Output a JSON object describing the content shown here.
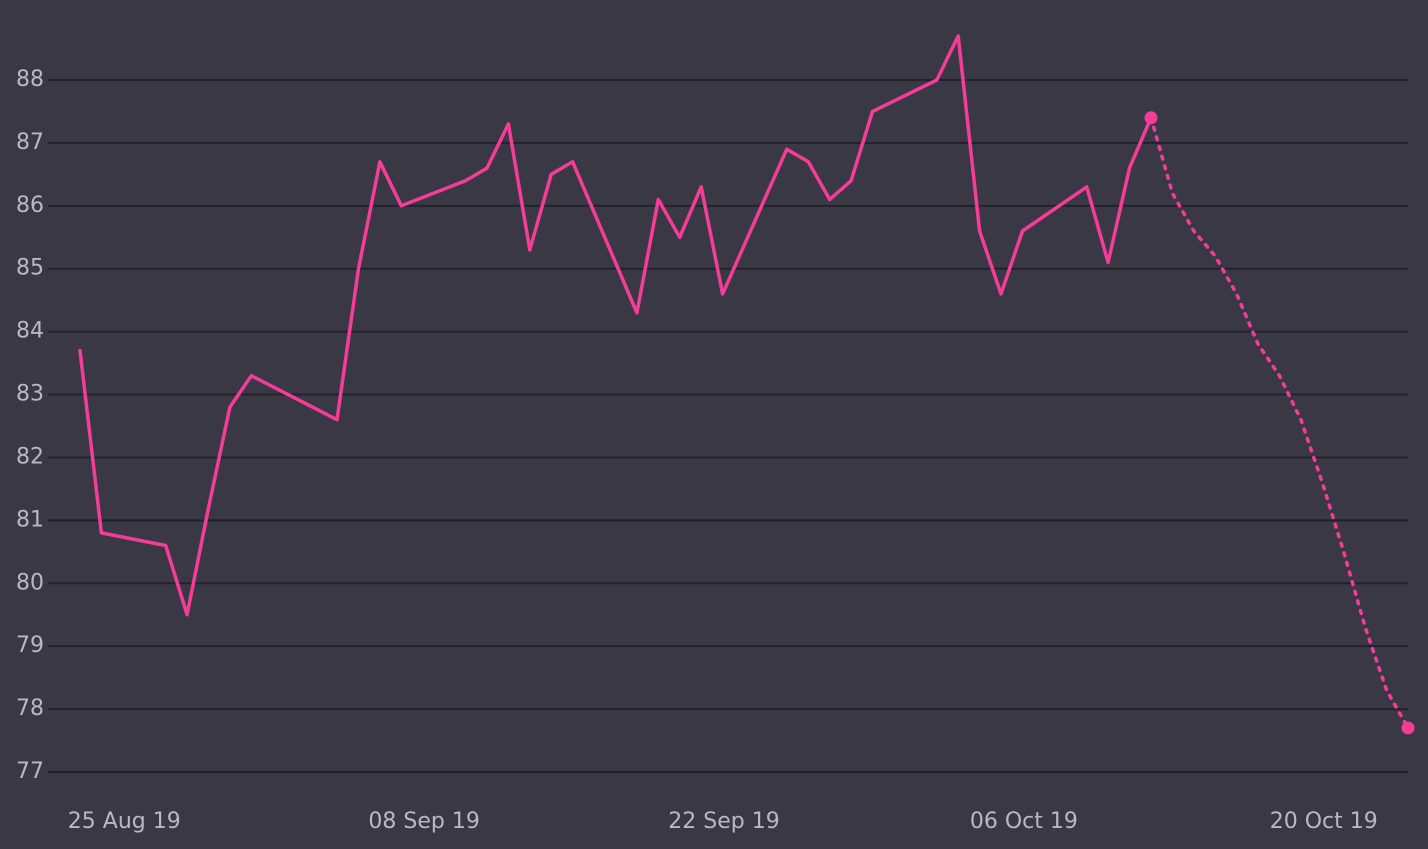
{
  "chart_data": {
    "type": "line",
    "title": "",
    "xlabel": "",
    "ylabel": "",
    "ylim": [
      77,
      88
    ],
    "y_ticks": [
      77,
      78,
      79,
      80,
      81,
      82,
      83,
      84,
      85,
      86,
      87,
      88
    ],
    "x_ticks": [
      {
        "date": "2019-08-25",
        "label": "25 Aug 19"
      },
      {
        "date": "2019-09-08",
        "label": "08 Sep 19"
      },
      {
        "date": "2019-09-22",
        "label": "22 Sep 19"
      },
      {
        "date": "2019-10-06",
        "label": "06 Oct 19"
      },
      {
        "date": "2019-10-20",
        "label": "20 Oct 19"
      }
    ],
    "xlim": [
      "2019-08-22",
      "2019-10-23"
    ],
    "grid": true,
    "colors": {
      "background": "#393844",
      "grid": "#23222b",
      "series": "#f53d97",
      "tick_label": "#b9b8c4"
    },
    "series": [
      {
        "style": "solid",
        "points": [
          {
            "x": "2019-08-22",
            "y": 83.7
          },
          {
            "x": "2019-08-23",
            "y": 80.8
          },
          {
            "x": "2019-08-26",
            "y": 80.6
          },
          {
            "x": "2019-08-27",
            "y": 79.5
          },
          {
            "x": "2019-08-28",
            "y": 81.2
          },
          {
            "x": "2019-08-29",
            "y": 82.8
          },
          {
            "x": "2019-08-30",
            "y": 83.3
          },
          {
            "x": "2019-09-03",
            "y": 82.6
          },
          {
            "x": "2019-09-04",
            "y": 85.0
          },
          {
            "x": "2019-09-05",
            "y": 86.7
          },
          {
            "x": "2019-09-06",
            "y": 86.0
          },
          {
            "x": "2019-09-09",
            "y": 86.4
          },
          {
            "x": "2019-09-10",
            "y": 86.6
          },
          {
            "x": "2019-09-11",
            "y": 87.3
          },
          {
            "x": "2019-09-12",
            "y": 85.3
          },
          {
            "x": "2019-09-13",
            "y": 86.5
          },
          {
            "x": "2019-09-14",
            "y": 86.7
          },
          {
            "x": "2019-09-17",
            "y": 84.3
          },
          {
            "x": "2019-09-18",
            "y": 86.1
          },
          {
            "x": "2019-09-19",
            "y": 85.5
          },
          {
            "x": "2019-09-20",
            "y": 86.3
          },
          {
            "x": "2019-09-21",
            "y": 84.6
          },
          {
            "x": "2019-09-24",
            "y": 86.9
          },
          {
            "x": "2019-09-25",
            "y": 86.7
          },
          {
            "x": "2019-09-26",
            "y": 86.1
          },
          {
            "x": "2019-09-27",
            "y": 86.4
          },
          {
            "x": "2019-09-28",
            "y": 87.5
          },
          {
            "x": "2019-10-01",
            "y": 88.0
          },
          {
            "x": "2019-10-02",
            "y": 88.7
          },
          {
            "x": "2019-10-03",
            "y": 85.6
          },
          {
            "x": "2019-10-04",
            "y": 84.6
          },
          {
            "x": "2019-10-05",
            "y": 85.6
          },
          {
            "x": "2019-10-08",
            "y": 86.3
          },
          {
            "x": "2019-10-09",
            "y": 85.1
          },
          {
            "x": "2019-10-10",
            "y": 86.6
          },
          {
            "x": "2019-10-11",
            "y": 87.4
          }
        ]
      },
      {
        "style": "dotted",
        "points": [
          {
            "x": "2019-10-11",
            "y": 87.4
          },
          {
            "x": "2019-10-12",
            "y": 86.2
          },
          {
            "x": "2019-10-13",
            "y": 85.6
          },
          {
            "x": "2019-10-14",
            "y": 85.2
          },
          {
            "x": "2019-10-15",
            "y": 84.6
          },
          {
            "x": "2019-10-16",
            "y": 83.8
          },
          {
            "x": "2019-10-17",
            "y": 83.3
          },
          {
            "x": "2019-10-18",
            "y": 82.6
          },
          {
            "x": "2019-10-19",
            "y": 81.6
          },
          {
            "x": "2019-10-20",
            "y": 80.5
          },
          {
            "x": "2019-10-21",
            "y": 79.3
          },
          {
            "x": "2019-10-22",
            "y": 78.3
          },
          {
            "x": "2019-10-23",
            "y": 77.7
          }
        ]
      }
    ]
  }
}
